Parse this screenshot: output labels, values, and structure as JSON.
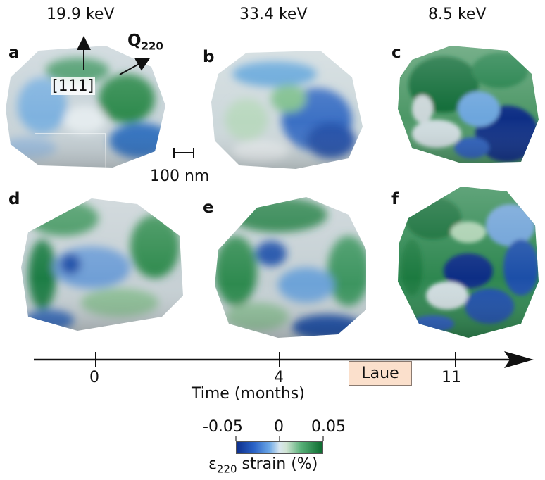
{
  "columns": [
    "19.9 keV",
    "33.4 keV",
    "8.5 keV"
  ],
  "panels": [
    "a",
    "b",
    "c",
    "d",
    "e",
    "f"
  ],
  "annotations": {
    "direction_111": "[111]",
    "q_vector": "Q",
    "q_subscript": "220",
    "scale_bar": "100 nm"
  },
  "timeline": {
    "ticks": [
      "0",
      "4",
      "11"
    ],
    "title": "Time (months)",
    "laue": "Laue"
  },
  "colorbar": {
    "ticks": [
      "-0.05",
      "0",
      "0.05"
    ],
    "label_symbol": "ε",
    "label_subscript": "220",
    "label_rest": " strain (%)",
    "colors": [
      "#0d2f8c",
      "#6aa6e6",
      "#d9e7ef",
      "#58b078",
      "#0b6a2e"
    ]
  }
}
